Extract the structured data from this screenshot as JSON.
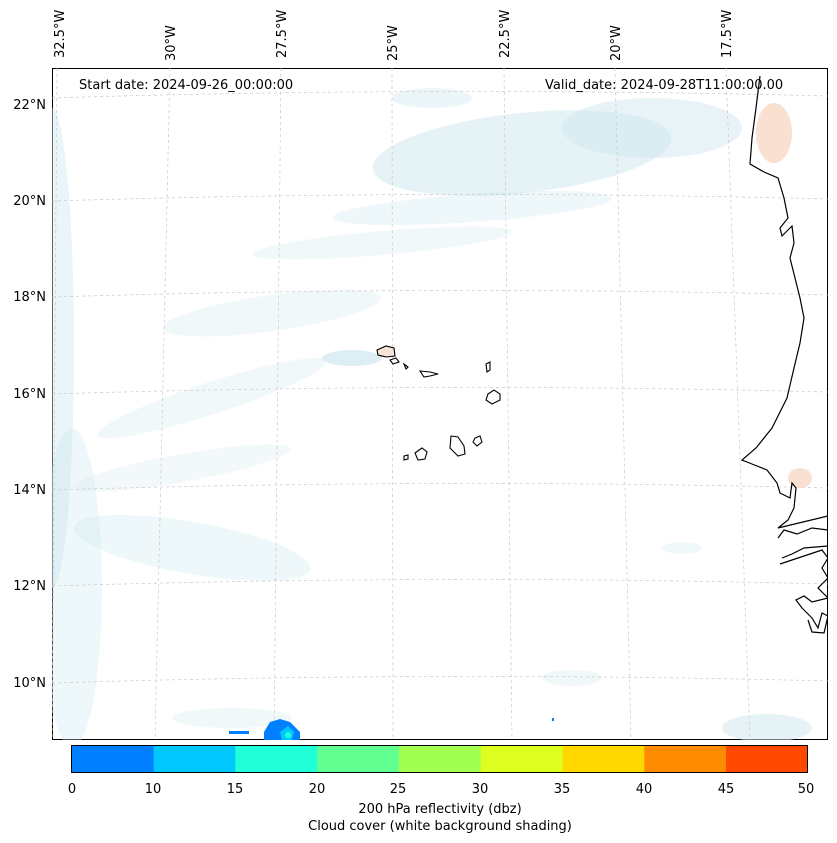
{
  "map": {
    "start_date": "Start date: 2024-09-26_00:00:00",
    "valid_date": "Valid_date: 2024-09-28T11:00:00.00",
    "lon_labels": [
      "32.5°W",
      "30°W",
      "27.5°W",
      "25°W",
      "22.5°W",
      "20°W",
      "17.5°W"
    ],
    "lat_labels": [
      "22°N",
      "20°N",
      "18°N",
      "16°N",
      "14°N",
      "12°N",
      "10°N"
    ]
  },
  "colorbar": {
    "ticks": [
      "0",
      "10",
      "15",
      "20",
      "25",
      "30",
      "35",
      "40",
      "45",
      "50"
    ],
    "colors": [
      "#0080ff",
      "#00c8ff",
      "#20ffd8",
      "#60ff90",
      "#a0ff50",
      "#dcff20",
      "#ffd800",
      "#ff8c00",
      "#ff4800"
    ],
    "label_line1": "200 hPa reflectivity (dbz)",
    "label_line2": "Cloud cover (white background shading)"
  },
  "colors": {
    "cloud": "#cfe8ef",
    "coast": "#000000",
    "grid": "#c8c8c8",
    "land_warm": "#f7d8c6"
  }
}
